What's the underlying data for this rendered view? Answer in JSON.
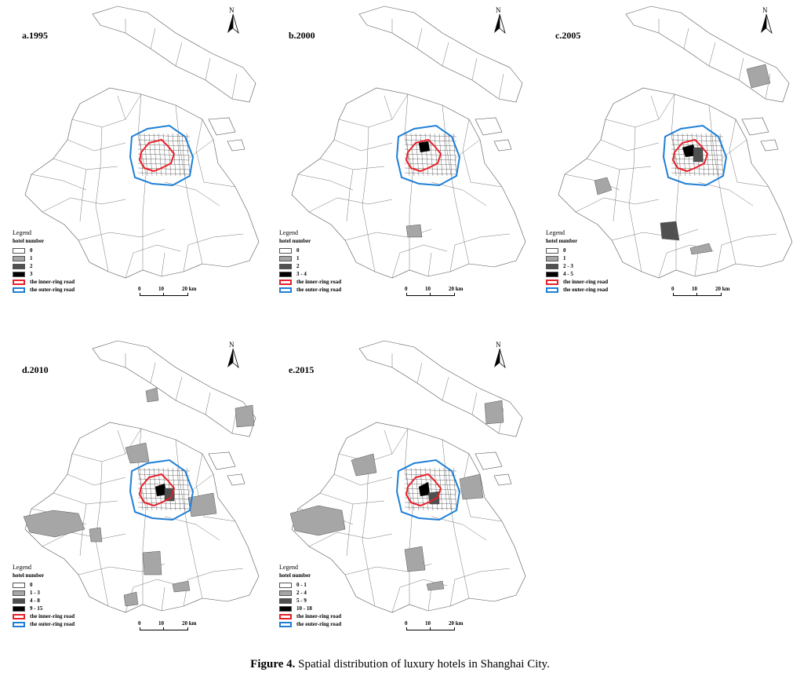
{
  "figure": {
    "caption_label": "Figure 4.",
    "caption_text": " Spatial distribution of luxury hotels in Shanghai City.",
    "north_label": "N",
    "legend_title": "Legend",
    "legend_subtitle": "hotel number",
    "inner_ring_label": "the inner-ring road",
    "outer_ring_label": "the outer-ring road",
    "scale_labels": [
      "0",
      "10",
      "20 km"
    ],
    "colors": {
      "inner_ring": "#e8202a",
      "outer_ring": "#1f7fd6",
      "class_light": "#a6a6a6",
      "class_mid": "#505050",
      "class_dark": "#000000",
      "background": "#ffffff"
    }
  },
  "panels": [
    {
      "title": "a.1995",
      "classes": [
        {
          "label": "0",
          "color": "#ffffff"
        },
        {
          "label": "1",
          "color": "#a6a6a6"
        },
        {
          "label": "2",
          "color": "#505050"
        },
        {
          "label": "3",
          "color": "#000000"
        }
      ]
    },
    {
      "title": "b.2000",
      "classes": [
        {
          "label": "0",
          "color": "#ffffff"
        },
        {
          "label": "1",
          "color": "#a6a6a6"
        },
        {
          "label": "2",
          "color": "#505050"
        },
        {
          "label": "3 - 4",
          "color": "#000000"
        }
      ]
    },
    {
      "title": "c.2005",
      "classes": [
        {
          "label": "0",
          "color": "#ffffff"
        },
        {
          "label": "1",
          "color": "#a6a6a6"
        },
        {
          "label": "2 - 3",
          "color": "#505050"
        },
        {
          "label": "4 - 5",
          "color": "#000000"
        }
      ]
    },
    {
      "title": "d.2010",
      "classes": [
        {
          "label": "0",
          "color": "#ffffff"
        },
        {
          "label": "1 - 3",
          "color": "#a6a6a6"
        },
        {
          "label": "4 - 8",
          "color": "#505050"
        },
        {
          "label": "9 - 15",
          "color": "#000000"
        }
      ]
    },
    {
      "title": "e.2015",
      "classes": [
        {
          "label": "0 - 1",
          "color": "#ffffff"
        },
        {
          "label": "2 - 4",
          "color": "#a6a6a6"
        },
        {
          "label": "5 - 9",
          "color": "#505050"
        },
        {
          "label": "10 - 18",
          "color": "#000000"
        }
      ]
    }
  ]
}
